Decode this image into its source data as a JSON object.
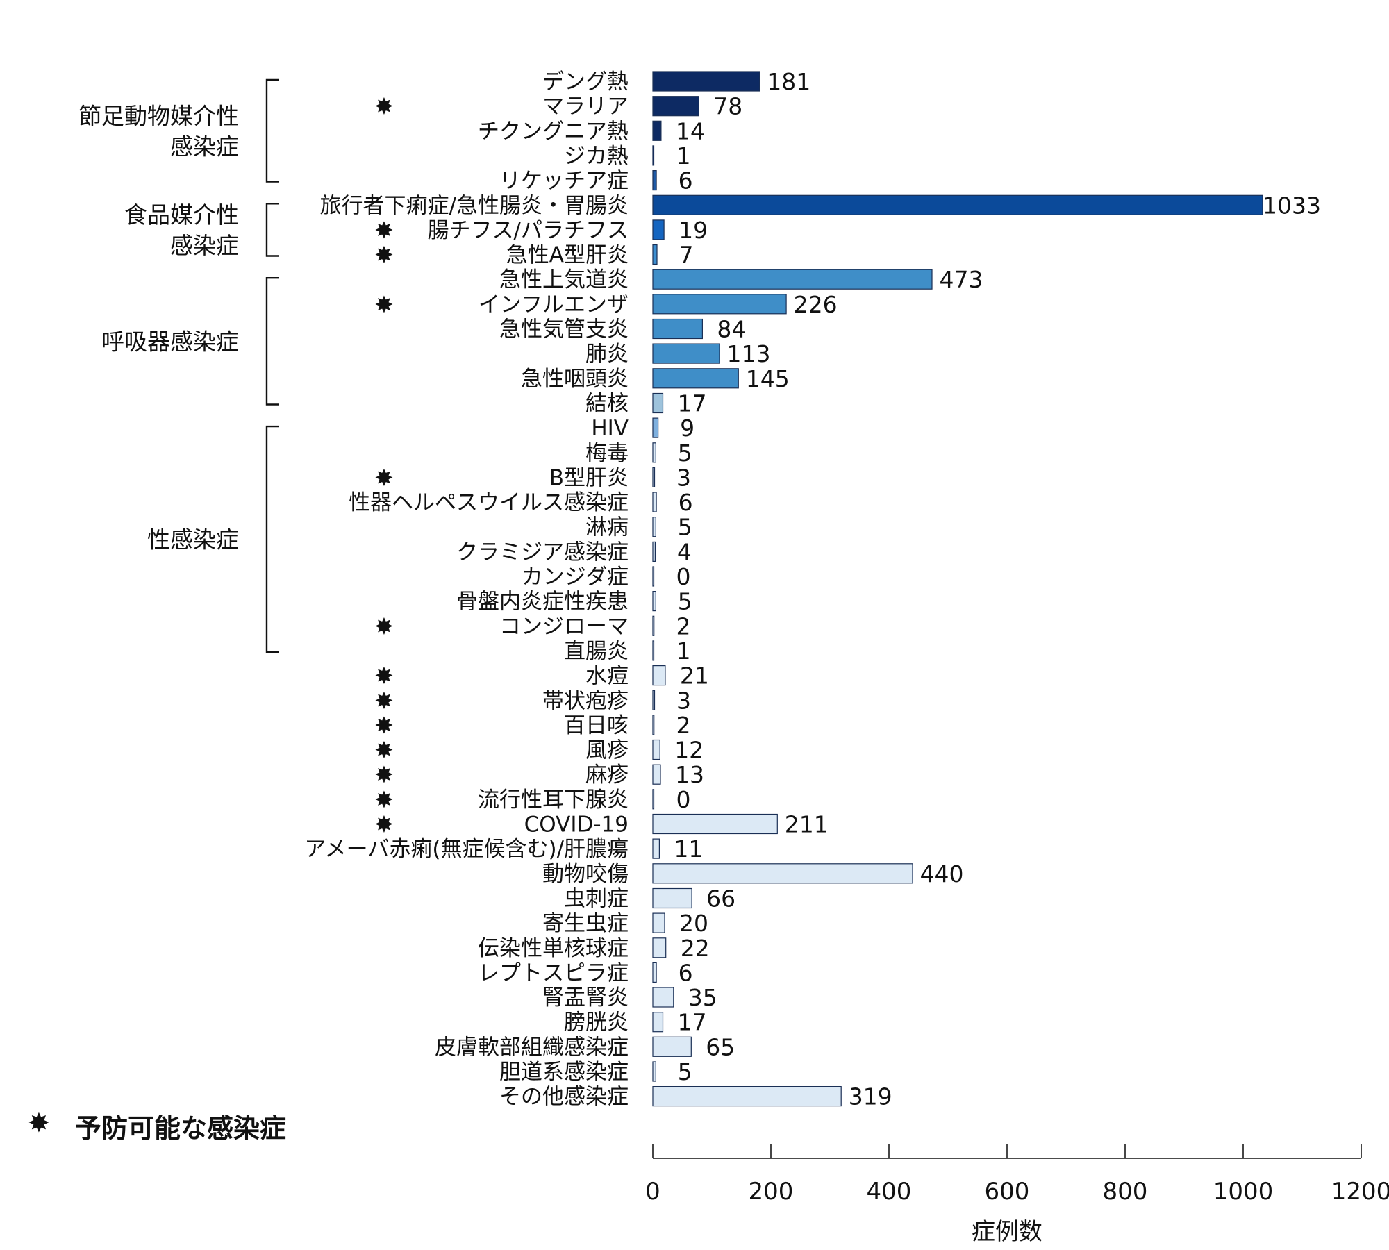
{
  "chart_data": {
    "type": "bar",
    "orientation": "horizontal",
    "xlabel": "症例数",
    "xlim": [
      0,
      1200
    ],
    "xticks": [
      0,
      200,
      400,
      600,
      800,
      1000,
      1200
    ],
    "grid": false,
    "categories": [
      "デング熱",
      "マラリア",
      "チクングニア熱",
      "ジカ熱",
      "リケッチア症",
      "旅行者下痢症/急性腸炎・胃腸炎",
      "腸チフス/パラチフス",
      "急性A型肝炎",
      "急性上気道炎",
      "インフルエンザ",
      "急性気管支炎",
      "肺炎",
      "急性咽頭炎",
      "結核",
      "HIV",
      "梅毒",
      "B型肝炎",
      "性器ヘルペスウイルス感染症",
      "淋病",
      "クラミジア感染症",
      "カンジダ症",
      "骨盤内炎症性疾患",
      "コンジローマ",
      "直腸炎",
      "水痘",
      "帯状疱疹",
      "百日咳",
      "風疹",
      "麻疹",
      "流行性耳下腺炎",
      "COVID-19",
      "アメーバ赤痢(無症候含む)/肝膿瘍",
      "動物咬傷",
      "虫刺症",
      "寄生虫症",
      "伝染性単核球症",
      "レプトスピラ症",
      "腎盂腎炎",
      "膀胱炎",
      "皮膚軟部組織感染症",
      "胆道系感染症",
      "その他感染症"
    ],
    "values": [
      181,
      78,
      14,
      1,
      6,
      1033,
      19,
      7,
      473,
      226,
      84,
      113,
      145,
      17,
      9,
      5,
      3,
      6,
      5,
      4,
      0,
      5,
      2,
      1,
      21,
      3,
      2,
      12,
      13,
      0,
      211,
      11,
      440,
      66,
      20,
      22,
      6,
      35,
      17,
      65,
      5,
      319
    ],
    "preventable": [
      false,
      true,
      false,
      false,
      false,
      false,
      true,
      true,
      false,
      true,
      false,
      false,
      false,
      false,
      false,
      false,
      true,
      false,
      false,
      false,
      false,
      false,
      true,
      false,
      true,
      true,
      true,
      true,
      true,
      true,
      true,
      false,
      false,
      false,
      false,
      false,
      false,
      false,
      false,
      false,
      false,
      false
    ],
    "bar_colors": [
      "#0d2a63",
      "#0d2a63",
      "#0d2a63",
      "#0d2a63",
      "#1f5aa6",
      "#0b4a9a",
      "#1565c0",
      "#3d8fd1",
      "#3f8ec8",
      "#3f8ec8",
      "#3f8ec8",
      "#3f8ec8",
      "#3f8ec8",
      "#9ec3dc",
      "#7fb0de",
      "#dbe9f6",
      "#dbe9f6",
      "#dbe9f6",
      "#dbe9f6",
      "#dbe9f6",
      "#dbe9f6",
      "#dbe9f6",
      "#dbe9f6",
      "#dbe9f6",
      "#dce9f5",
      "#dce9f5",
      "#dce9f5",
      "#dce9f5",
      "#dce9f5",
      "#dce9f5",
      "#dce9f5",
      "#dce9f5",
      "#dce9f5",
      "#dce9f5",
      "#dce9f5",
      "#dce9f5",
      "#dce9f5",
      "#dce9f5",
      "#dce9f5",
      "#dce9f5",
      "#dce9f5",
      "#dce9f5"
    ],
    "groups": [
      {
        "label_lines": [
          "節足動物媒介性",
          "感染症"
        ],
        "start": 0,
        "end": 4
      },
      {
        "label_lines": [
          "食品媒介性",
          "感染症"
        ],
        "start": 5,
        "end": 7
      },
      {
        "label_lines": [
          "呼吸器感染症"
        ],
        "start": 8,
        "end": 13
      },
      {
        "label_lines": [
          "性感染症"
        ],
        "start": 14,
        "end": 23
      }
    ],
    "legend": {
      "marker": "✸",
      "text": "予防可能な感染症",
      "placement": "bottom-left"
    }
  }
}
